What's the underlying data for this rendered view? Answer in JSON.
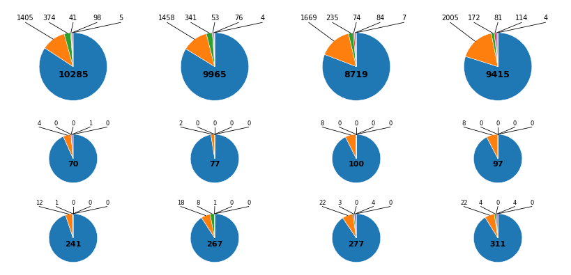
{
  "chart_data": [
    {
      "type": "pie",
      "values": [
        10285,
        1405,
        374,
        41,
        98,
        5
      ],
      "data_labels": true
    },
    {
      "type": "pie",
      "values": [
        9965,
        1458,
        341,
        53,
        76,
        4
      ],
      "data_labels": true
    },
    {
      "type": "pie",
      "values": [
        8719,
        1669,
        235,
        74,
        84,
        7
      ],
      "data_labels": true
    },
    {
      "type": "pie",
      "values": [
        9415,
        2005,
        172,
        81,
        114,
        4
      ],
      "data_labels": true
    },
    {
      "type": "pie",
      "values": [
        70,
        4,
        0,
        0,
        1,
        0
      ],
      "data_labels": true
    },
    {
      "type": "pie",
      "values": [
        77,
        2,
        0,
        0,
        0,
        0
      ],
      "data_labels": true
    },
    {
      "type": "pie",
      "values": [
        100,
        8,
        0,
        0,
        0,
        0
      ],
      "data_labels": true
    },
    {
      "type": "pie",
      "values": [
        97,
        8,
        0,
        0,
        0,
        0
      ],
      "data_labels": true
    },
    {
      "type": "pie",
      "values": [
        241,
        12,
        1,
        0,
        0,
        0
      ],
      "data_labels": true
    },
    {
      "type": "pie",
      "values": [
        267,
        18,
        8,
        1,
        0,
        0
      ],
      "data_labels": true
    },
    {
      "type": "pie",
      "values": [
        277,
        22,
        3,
        0,
        4,
        0
      ],
      "data_labels": true
    },
    {
      "type": "pie",
      "values": [
        311,
        22,
        4,
        0,
        4,
        0
      ],
      "data_labels": true
    }
  ]
}
